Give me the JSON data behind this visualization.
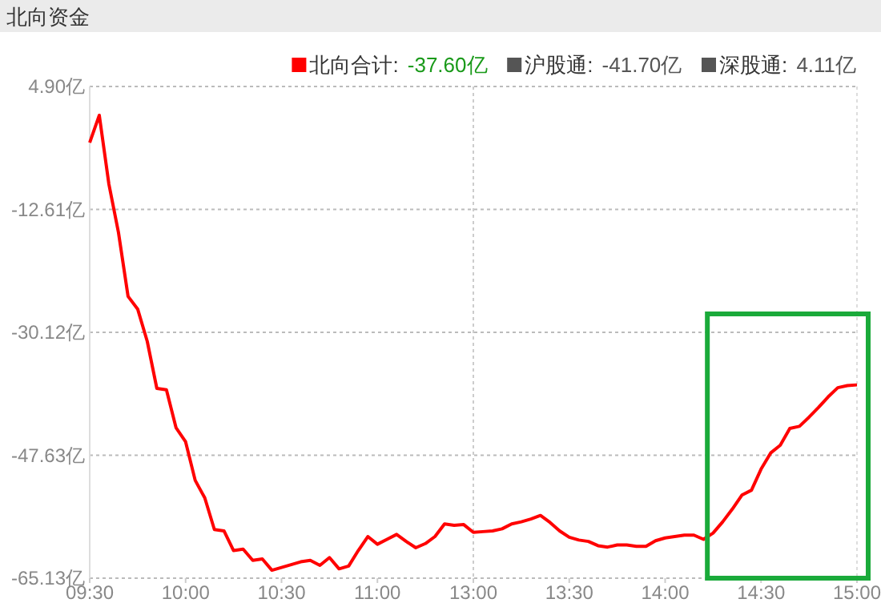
{
  "chart_data": {
    "type": "line",
    "title": "北向资金",
    "categories": [
      "09:30",
      null,
      null,
      null,
      null,
      null,
      null,
      null,
      null,
      null,
      "10:00",
      null,
      null,
      null,
      null,
      null,
      null,
      null,
      null,
      null,
      "10:30",
      null,
      null,
      null,
      null,
      null,
      null,
      null,
      null,
      null,
      "11:00",
      null,
      null,
      null,
      null,
      null,
      null,
      null,
      null,
      null,
      "13:00",
      null,
      null,
      null,
      null,
      null,
      null,
      null,
      null,
      null,
      "13:30",
      null,
      null,
      null,
      null,
      null,
      null,
      null,
      null,
      null,
      "14:00",
      null,
      null,
      null,
      null,
      null,
      null,
      null,
      null,
      null,
      "14:30",
      null,
      null,
      null,
      null,
      null,
      null,
      null,
      null,
      null,
      "15:00"
    ],
    "series": [
      {
        "name": "北向合计:",
        "color": "#ff0000",
        "values": [
          -3.1,
          0.8,
          -9.0,
          -15.9,
          -25.0,
          -26.8,
          -31.4,
          -38.1,
          -38.3,
          -43.7,
          -45.7,
          -51.2,
          -53.7,
          -58.2,
          -58.4,
          -61.2,
          -61.0,
          -62.6,
          -62.4,
          -64.0,
          -63.6,
          -63.2,
          -62.8,
          -62.6,
          -63.3,
          -62.2,
          -63.8,
          -63.4,
          -61.2,
          -59.2,
          -60.3,
          -59.6,
          -58.9,
          -59.9,
          -60.8,
          -60.2,
          -59.2,
          -57.4,
          -57.6,
          -57.5,
          -58.6,
          -58.5,
          -58.4,
          -58.1,
          -57.4,
          -57.1,
          -56.7,
          -56.2,
          -57.2,
          -58.4,
          -59.3,
          -59.7,
          -59.9,
          -60.5,
          -60.7,
          -60.4,
          -60.4,
          -60.6,
          -60.6,
          -59.8,
          -59.4,
          -59.2,
          -59.0,
          -59.0,
          -59.6,
          -58.7,
          -57.1,
          -55.3,
          -53.3,
          -52.6,
          -49.6,
          -47.3,
          -46.2,
          -43.8,
          -43.5,
          -42.2,
          -40.8,
          -39.3,
          -38.0,
          -37.7,
          -37.6
        ]
      }
    ],
    "annotations": [
      "-37.60亿",
      "沪股通:",
      "-41.70亿",
      "深股通:",
      "4.11亿"
    ],
    "ylim": [
      -65.13,
      4.9
    ],
    "yticks": [
      {
        "value": -65.13,
        "label": "-65.13亿"
      },
      {
        "value": -47.63,
        "label": "-47.63亿"
      },
      {
        "value": -30.12,
        "label": "-30.12亿"
      },
      {
        "value": -12.61,
        "label": "-12.61亿"
      },
      {
        "value": 4.9,
        "label": "4.90亿"
      }
    ],
    "grid": "y",
    "ref_lines": [
      {
        "axis": "x",
        "value": "13:00"
      }
    ],
    "legend": "top",
    "line_style": "solid"
  }
}
